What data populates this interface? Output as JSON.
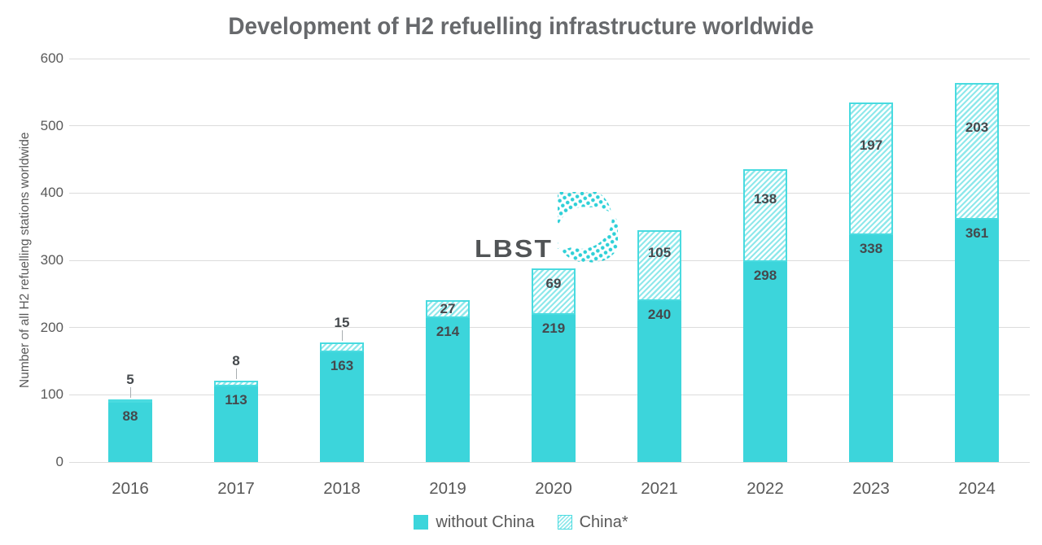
{
  "logo": {
    "text": "LBST"
  },
  "chart_data": {
    "type": "bar",
    "stacked": true,
    "title": "Development of H2 refuelling infrastructure worldwide",
    "categories": [
      "2016",
      "2017",
      "2018",
      "2019",
      "2020",
      "2021",
      "2022",
      "2023",
      "2024"
    ],
    "series": [
      {
        "name": "without China",
        "values": [
          88,
          113,
          163,
          214,
          219,
          240,
          298,
          338,
          361
        ],
        "color": "#3cd5db",
        "pattern": "solid"
      },
      {
        "name": "China*",
        "values": [
          5,
          8,
          15,
          27,
          69,
          105,
          138,
          197,
          203
        ],
        "color": "#49dbe0",
        "pattern": "diagonal-hatch",
        "hatch_stripe_color": "#8fe8eb"
      }
    ],
    "xlabel": "",
    "ylabel": "Number of all H2 refuelling stations worldwide",
    "ylim": [
      0,
      600
    ],
    "yticks": [
      0,
      100,
      200,
      300,
      400,
      500,
      600
    ],
    "grid": true,
    "gridline_color": "#dcdcdc",
    "legend_position": "bottom",
    "bar_value_labels": true
  }
}
